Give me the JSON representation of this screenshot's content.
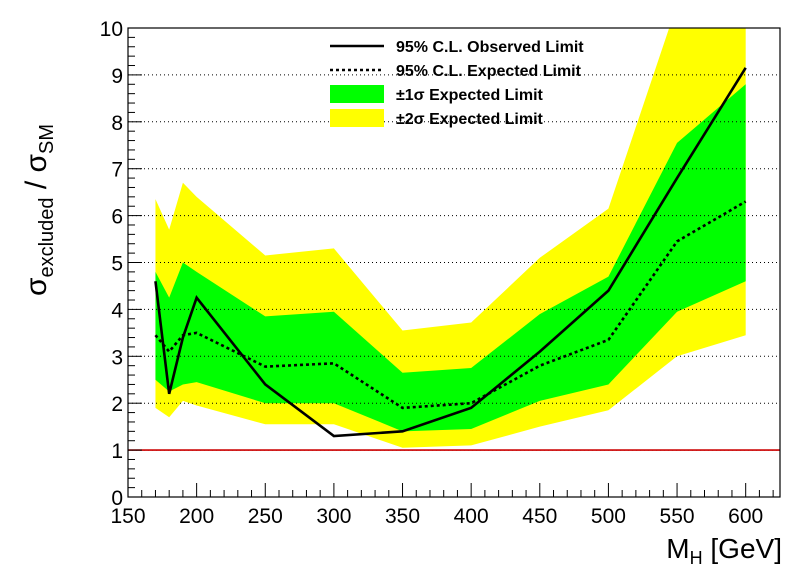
{
  "chart_data": {
    "type": "line",
    "xlabel": "M_H [GeV]",
    "xlabel_parts": {
      "main": "M",
      "sub": "H",
      "rest": " [GeV]"
    },
    "ylabel_parts": {
      "sym1": "σ",
      "sub1": "excluded",
      "slash": " / ",
      "sym2": "σ",
      "sub2": "SM"
    },
    "xlim": [
      150,
      625
    ],
    "ylim": [
      0,
      10
    ],
    "x_ticks": [
      150,
      200,
      250,
      300,
      350,
      400,
      450,
      500,
      550,
      600
    ],
    "y_ticks": [
      0,
      1,
      2,
      3,
      4,
      5,
      6,
      7,
      8,
      9,
      10
    ],
    "grid": "horizontal dotted",
    "legend_position": "top-center",
    "legend": [
      {
        "label": "95% C.L. Observed Limit",
        "style": "solid-line"
      },
      {
        "label": "95% C.L. Expected Limit",
        "style": "dotted-line"
      },
      {
        "label": "±1σ Expected Limit",
        "style": "green-band"
      },
      {
        "label": "±2σ Expected Limit",
        "style": "yellow-band"
      }
    ],
    "x": [
      170,
      180,
      190,
      200,
      250,
      300,
      350,
      400,
      450,
      500,
      550,
      600
    ],
    "series": [
      {
        "name": "95% C.L. Observed Limit",
        "values": [
          4.6,
          2.2,
          3.4,
          4.25,
          2.4,
          1.3,
          1.4,
          1.9,
          3.1,
          4.4,
          6.8,
          9.15
        ]
      },
      {
        "name": "95% C.L. Expected Limit",
        "values": [
          3.45,
          3.1,
          3.45,
          3.5,
          2.78,
          2.85,
          1.9,
          2.0,
          2.8,
          3.35,
          5.45,
          6.3
        ]
      }
    ],
    "bands": [
      {
        "name": "±1σ Expected Limit",
        "lower": [
          2.5,
          2.25,
          2.4,
          2.45,
          2.0,
          2.0,
          1.4,
          1.45,
          2.05,
          2.4,
          3.95,
          4.6
        ],
        "upper": [
          4.8,
          4.25,
          5.0,
          4.8,
          3.85,
          3.95,
          2.65,
          2.75,
          3.9,
          4.7,
          7.55,
          8.8
        ]
      },
      {
        "name": "±2σ Expected Limit",
        "lower": [
          1.9,
          1.7,
          2.05,
          1.95,
          1.55,
          1.55,
          1.05,
          1.1,
          1.5,
          1.85,
          3.0,
          3.45
        ],
        "upper": [
          6.35,
          5.7,
          6.7,
          6.4,
          5.15,
          5.3,
          3.55,
          3.72,
          5.1,
          6.15,
          10.5,
          10.5
        ]
      }
    ],
    "reference_line": {
      "y": 1.0
    },
    "colors": {
      "band_1sigma": "#00ff00",
      "band_2sigma": "#ffff00",
      "observed": "#000000",
      "expected": "#000000",
      "reference": "#cc0000"
    }
  }
}
